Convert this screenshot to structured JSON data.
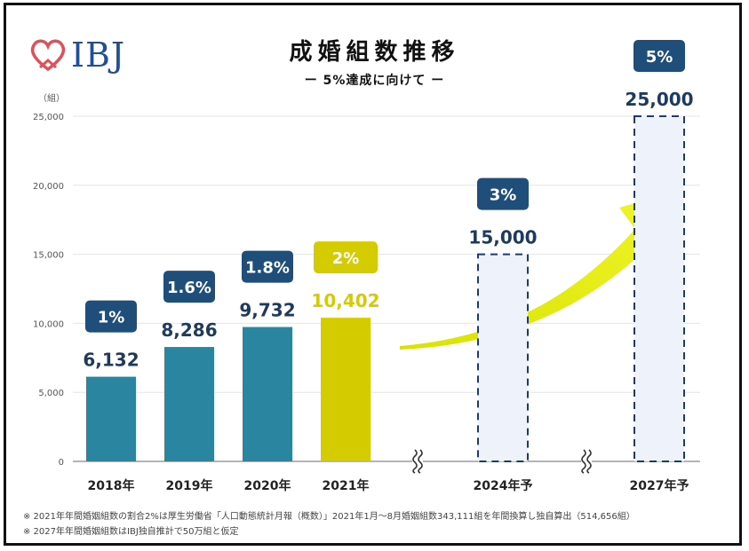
{
  "logo": {
    "text": "IBJ"
  },
  "title": "成婚組数推移",
  "subtitle": "ー 5%達成に向けて ー",
  "notes": [
    "※ 2021年年間婚姻組数の割合2%は厚生労働省「人口動態統計月報（概数）」2021年1月〜8月婚姻組数343,111組を年間換算し独自算出（514,656組）",
    "※ 2027年年間婚姻組数はIBJ独自推計で50万組と仮定"
  ],
  "colors": {
    "teal": "#2a86a0",
    "yellow": "#d4cc00",
    "navy": "#1e4e79",
    "projected_fill": "#eef3fb",
    "projected_border": "#1e3a6e",
    "arrow": "#e8f018"
  },
  "chart_data": {
    "type": "bar",
    "unit_label": "（組）",
    "ylim": [
      0,
      25000
    ],
    "yticks": [
      0,
      5000,
      10000,
      15000,
      20000,
      25000
    ],
    "ytick_labels": [
      "0",
      "5,000",
      "10,000",
      "15,000",
      "20,000",
      "25,000"
    ],
    "grid": true,
    "categories": [
      "2018年",
      "2019年",
      "2020年",
      "2021年",
      "2024年予",
      "2027年予"
    ],
    "values": [
      6132,
      8286,
      9732,
      10402,
      15000,
      25000
    ],
    "value_labels": [
      "6,132",
      "8,286",
      "9,732",
      "10,402",
      "15,000",
      "25,000"
    ],
    "share_labels": [
      "1%",
      "1.6%",
      "1.8%",
      "2%",
      "3%",
      "5%"
    ],
    "styles": [
      "actual",
      "actual",
      "actual",
      "highlight",
      "projected",
      "projected"
    ]
  }
}
